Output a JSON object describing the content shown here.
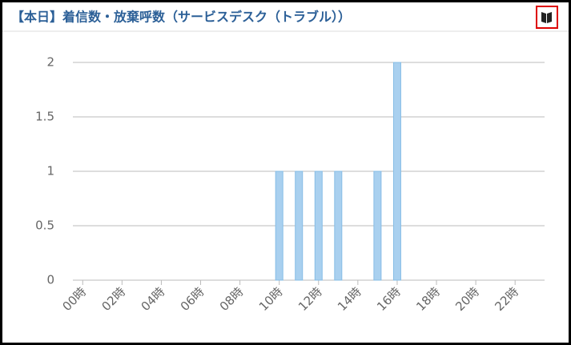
{
  "chart_data": {
    "type": "bar",
    "title": "【本日】着信数・放棄呼数（サービスデスク（トラブル））",
    "categories": [
      "00時",
      null,
      "02時",
      null,
      "04時",
      null,
      "06時",
      null,
      "08時",
      null,
      "10時",
      null,
      "12時",
      null,
      "14時",
      null,
      "16時",
      null,
      "18時",
      null,
      "20時",
      null,
      "22時",
      null
    ],
    "values": [
      0,
      0,
      0,
      0,
      0,
      0,
      0,
      0,
      0,
      0,
      1,
      1,
      1,
      1,
      0,
      1,
      2,
      0,
      0,
      0,
      0,
      0,
      0,
      0
    ],
    "color": "#a9d0ef",
    "ylim": [
      0,
      2
    ],
    "yticks": [
      0,
      0.5,
      1,
      1.5,
      2
    ],
    "grid": true
  }
}
